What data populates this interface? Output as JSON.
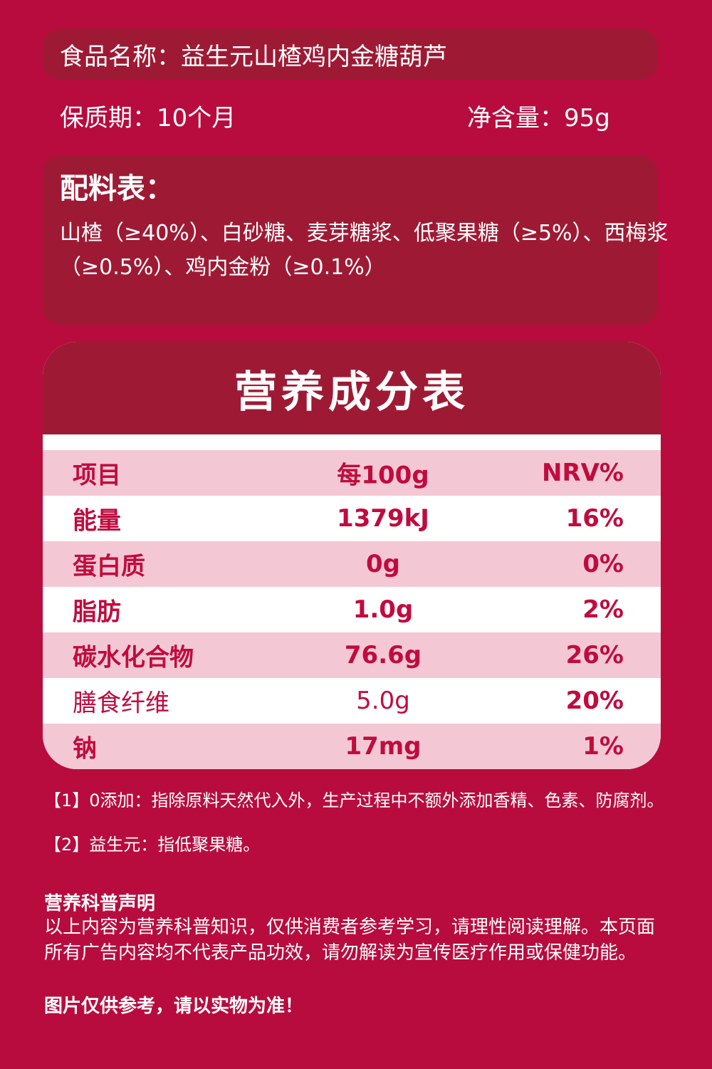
{
  "product": {
    "name_label": "食品名称：",
    "name_value": "益生元山楂鸡内金糖葫芦",
    "shelf_label": "保质期：",
    "shelf_value": "10个月",
    "net_label": "净含量：",
    "net_value": "95g"
  },
  "ingredients": {
    "title": "配料表：",
    "text": "山楂（≥40%）、白砂糖、麦芽糖浆、低聚果糖（≥5%）、西梅浆（≥0.5%）、鸡内金粉（≥0.1%）"
  },
  "nutrition": {
    "title": "营养成分表",
    "header": [
      "项目",
      "每100g",
      "NRV%"
    ],
    "rows": [
      [
        "能量",
        "1379kJ",
        "16%"
      ],
      [
        "蛋白质",
        "0g",
        "0%"
      ],
      [
        "脂肪",
        "1.0g",
        "2%"
      ],
      [
        "碳水化合物",
        "76.6g",
        "26%"
      ],
      [
        "膳食纤维",
        "5.0g",
        "20%"
      ],
      [
        "钠",
        "17mg",
        "1%"
      ]
    ]
  },
  "notes": {
    "note1": "【1】0添加：指除原料天然代入外，生产过程中不额外添加香精、色素、防腐剂。",
    "note2": "【2】益生元：指低聚果糖。"
  },
  "declaration": {
    "title": "营养科普声明",
    "text": "以上内容为营养科普知识，仅供消费者参考学习，请理性阅读理解。本页面所有广告内容均不代表产品功效，请勿解读为宣传医疗作用或保健功能。"
  },
  "footer": "图片仅供参考，请以实物为准！",
  "colors": {
    "background": "#b80c3e",
    "box": "#9e1a34",
    "row_pink": "#f3c8d4",
    "text_red": "#c10b3e"
  }
}
